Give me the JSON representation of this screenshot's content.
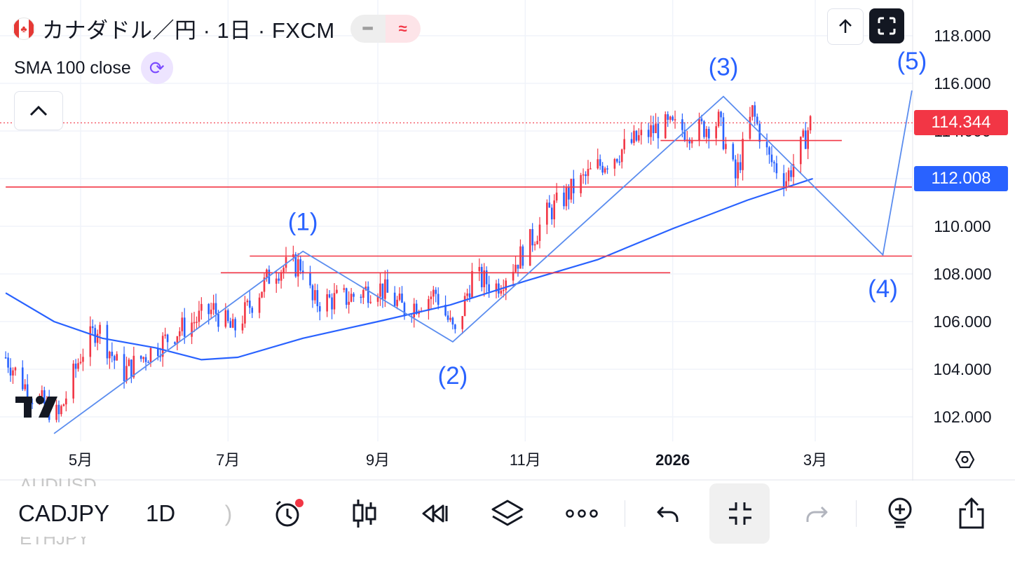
{
  "legend": {
    "symbol_title": "カナダドル／円 · 1日 · FXCM",
    "indicator": "SMA 100 close"
  },
  "price_tags": {
    "last": "114.344",
    "sma": "112.008"
  },
  "colors": {
    "up": "#f23645",
    "down": "#2962ff",
    "sma": "#2962ff",
    "hline": "#f23645",
    "wave": "#5b8def",
    "grid": "#f0f3fa",
    "last_price_bg": "#f23645",
    "sma_bg": "#2962ff"
  },
  "toolbar": {
    "symbol": "CADJPY",
    "symbol_prev": "AUDUSD",
    "symbol_next": "ETHJPY",
    "timeframe": "1D",
    "icons": [
      "alert-icon",
      "candles-icon",
      "replay-icon",
      "layers-icon",
      "more-icon",
      "undo-icon",
      "collapse-icon",
      "redo-icon",
      "add-bulb-icon",
      "share-icon"
    ]
  },
  "chart_data": {
    "type": "candlestick",
    "symbol": "CADJPY",
    "interval": "1D",
    "source": "FXCM",
    "y_ticks": [
      "118.000",
      "116.000",
      "114.000",
      "112.000",
      "110.000",
      "108.000",
      "106.000",
      "104.000",
      "102.000"
    ],
    "x_ticks": [
      "5月",
      "7月",
      "9月",
      "11月",
      "2026",
      "3月"
    ],
    "ylim": [
      101,
      119.5
    ],
    "last_price": 114.344,
    "sma_value": 112.008,
    "close_path": [
      [
        "2025-03-31",
        104.5
      ],
      [
        "2025-04-10",
        103.0
      ],
      [
        "2025-04-22",
        102.0
      ],
      [
        "2025-05-01",
        104.6
      ],
      [
        "2025-05-08",
        105.8
      ],
      [
        "2025-05-18",
        103.8
      ],
      [
        "2025-05-28",
        104.6
      ],
      [
        "2025-06-10",
        105.6
      ],
      [
        "2025-06-25",
        106.5
      ],
      [
        "2025-07-03",
        105.6
      ],
      [
        "2025-07-20",
        108.2
      ],
      [
        "2025-08-01",
        108.4
      ],
      [
        "2025-08-05",
        106.8
      ],
      [
        "2025-08-20",
        107.0
      ],
      [
        "2025-09-01",
        107.5
      ],
      [
        "2025-09-12",
        106.5
      ],
      [
        "2025-09-25",
        107.2
      ],
      [
        "2025-10-03",
        105.4
      ],
      [
        "2025-10-10",
        107.9
      ],
      [
        "2025-10-20",
        107.5
      ],
      [
        "2025-11-01",
        109.0
      ],
      [
        "2025-11-10",
        110.5
      ],
      [
        "2025-11-20",
        111.5
      ],
      [
        "2025-12-01",
        112.5
      ],
      [
        "2025-12-15",
        113.5
      ],
      [
        "2025-12-27",
        114.2
      ],
      [
        "2026-01-10",
        114.0
      ],
      [
        "2026-01-20",
        114.4
      ],
      [
        "2026-01-27",
        112.0
      ],
      [
        "2026-02-03",
        114.8
      ],
      [
        "2026-02-10",
        112.8
      ],
      [
        "2026-02-17",
        112.0
      ],
      [
        "2026-02-24",
        113.5
      ],
      [
        "2026-02-27",
        114.344
      ]
    ],
    "sma_path": [
      [
        "2025-03-31",
        107.2
      ],
      [
        "2025-04-20",
        106.0
      ],
      [
        "2025-05-10",
        105.3
      ],
      [
        "2025-06-01",
        104.9
      ],
      [
        "2025-06-20",
        104.4
      ],
      [
        "2025-07-05",
        104.5
      ],
      [
        "2025-08-01",
        105.3
      ],
      [
        "2025-09-01",
        106.0
      ],
      [
        "2025-10-01",
        106.7
      ],
      [
        "2025-11-01",
        107.7
      ],
      [
        "2025-12-01",
        108.6
      ],
      [
        "2026-01-01",
        109.9
      ],
      [
        "2026-02-01",
        111.1
      ],
      [
        "2026-02-28",
        112.0
      ]
    ],
    "horizontal_lines": [
      {
        "y": 111.65,
        "from": "2025-03-31",
        "to": "2026-04-10"
      },
      {
        "y": 108.75,
        "from": "2025-07-10",
        "to": "2026-04-10"
      },
      {
        "y": 108.05,
        "from": "2025-06-28",
        "to": "2025-12-31"
      },
      {
        "y": 113.6,
        "from": "2025-12-27",
        "to": "2026-03-12"
      }
    ],
    "wave_points": [
      {
        "label": "",
        "date": "2025-04-20",
        "price": 101.3
      },
      {
        "label": "(1)",
        "date": "2025-08-01",
        "price": 108.95
      },
      {
        "label": "(2)",
        "date": "2025-10-02",
        "price": 105.15
      },
      {
        "label": "(3)",
        "date": "2026-01-22",
        "price": 115.45
      },
      {
        "label": "(4)",
        "date": "2026-03-29",
        "price": 108.8
      },
      {
        "label": "(5)",
        "date": "2026-04-10",
        "price": 115.7
      }
    ]
  }
}
